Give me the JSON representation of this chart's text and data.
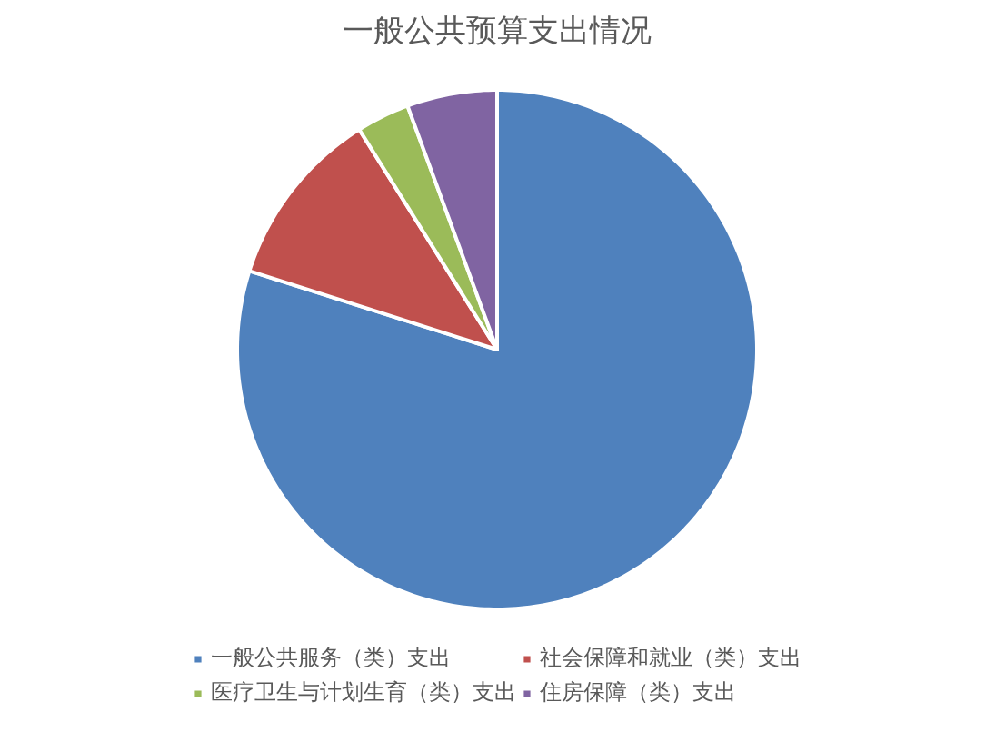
{
  "chart_data": {
    "type": "pie",
    "title": "一般公共预算支出情况",
    "categories": [
      "一般公共服务（类）支出",
      "社会保障和就业（类）支出",
      "医疗卫生与计划生育（类）支出",
      "住房保障（类）支出"
    ],
    "values": [
      79.9,
      11.2,
      3.3,
      5.6
    ],
    "colors": [
      "#4f81bd",
      "#c0504d",
      "#9bbb59",
      "#8064a2"
    ],
    "legend": "bottom"
  }
}
